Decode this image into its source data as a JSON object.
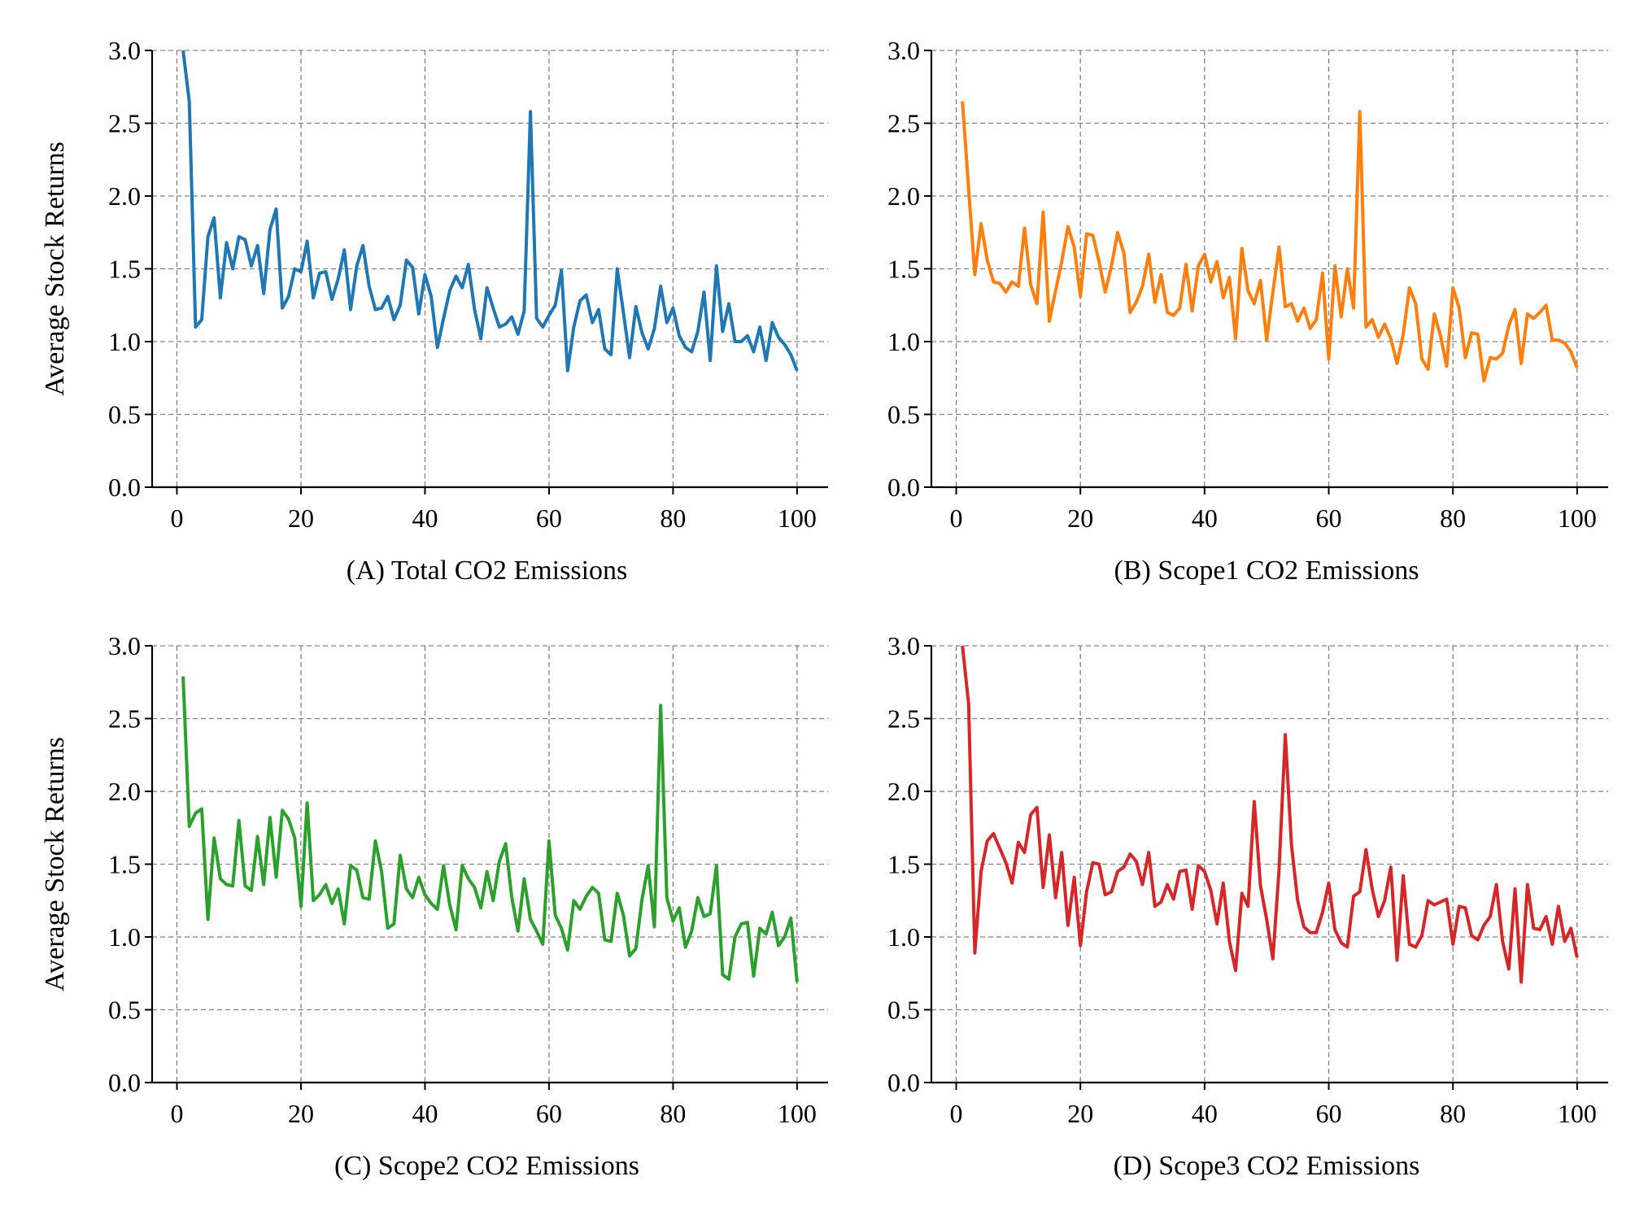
{
  "chart_data": [
    {
      "type": "line",
      "xlabel": "(A) Total CO2 Emissions",
      "ylabel": "Average Stock Returns",
      "xlim": [
        -4,
        105
      ],
      "ylim": [
        0,
        3.0
      ],
      "xticks": [
        0,
        20,
        40,
        60,
        80,
        100
      ],
      "yticks": [
        0.0,
        0.5,
        1.0,
        1.5,
        2.0,
        2.5,
        3.0
      ],
      "grid": true,
      "color": "#1f77b4",
      "series": [
        {
          "x": [
            1,
            2,
            3,
            4,
            5,
            6,
            7,
            8,
            9,
            10,
            11,
            12,
            13,
            14,
            15,
            16,
            17,
            18,
            19,
            20,
            21,
            22,
            23,
            24,
            25,
            26,
            27,
            28,
            29,
            30,
            31,
            32,
            33,
            34,
            35,
            36,
            37,
            38,
            39,
            40,
            41,
            42,
            43,
            44,
            45,
            46,
            47,
            48,
            49,
            50,
            51,
            52,
            53,
            54,
            55,
            56,
            57,
            58,
            59,
            60,
            61,
            62,
            63,
            64,
            65,
            66,
            67,
            68,
            69,
            70,
            71,
            72,
            73,
            74,
            75,
            76,
            77,
            78,
            79,
            80,
            81,
            82,
            83,
            84,
            85,
            86,
            87,
            88,
            89,
            90,
            91,
            92,
            93,
            94,
            95,
            96,
            97,
            98,
            99,
            100
          ],
          "values": [
            3.0,
            2.65,
            1.1,
            1.15,
            1.72,
            1.85,
            1.3,
            1.68,
            1.5,
            1.72,
            1.7,
            1.52,
            1.66,
            1.33,
            1.77,
            1.91,
            1.23,
            1.31,
            1.5,
            1.48,
            1.69,
            1.3,
            1.47,
            1.48,
            1.29,
            1.43,
            1.63,
            1.22,
            1.52,
            1.66,
            1.38,
            1.22,
            1.23,
            1.31,
            1.15,
            1.25,
            1.56,
            1.51,
            1.19,
            1.46,
            1.31,
            0.96,
            1.16,
            1.35,
            1.45,
            1.37,
            1.53,
            1.22,
            1.02,
            1.37,
            1.23,
            1.1,
            1.12,
            1.17,
            1.05,
            1.21,
            2.58,
            1.16,
            1.1,
            1.18,
            1.25,
            1.49,
            0.8,
            1.1,
            1.28,
            1.32,
            1.13,
            1.22,
            0.95,
            0.91,
            1.5,
            1.2,
            0.89,
            1.24,
            1.06,
            0.95,
            1.09,
            1.38,
            1.13,
            1.23,
            1.04,
            0.96,
            0.93,
            1.07,
            1.34,
            0.87,
            1.52,
            1.07,
            1.26,
            1.0,
            1.0,
            1.04,
            0.93,
            1.1,
            0.87,
            1.13,
            1.03,
            0.98,
            0.91,
            0.8
          ]
        }
      ]
    },
    {
      "type": "line",
      "xlabel": "(B) Scope1 CO2 Emissions",
      "ylabel": "",
      "xlim": [
        -4,
        105
      ],
      "ylim": [
        0,
        3.0
      ],
      "xticks": [
        0,
        20,
        40,
        60,
        80,
        100
      ],
      "yticks": [
        0.0,
        0.5,
        1.0,
        1.5,
        2.0,
        2.5,
        3.0
      ],
      "grid": true,
      "color": "#ff7f0e",
      "series": [
        {
          "x": [
            1,
            2,
            3,
            4,
            5,
            6,
            7,
            8,
            9,
            10,
            11,
            12,
            13,
            14,
            15,
            16,
            17,
            18,
            19,
            20,
            21,
            22,
            23,
            24,
            25,
            26,
            27,
            28,
            29,
            30,
            31,
            32,
            33,
            34,
            35,
            36,
            37,
            38,
            39,
            40,
            41,
            42,
            43,
            44,
            45,
            46,
            47,
            48,
            49,
            50,
            51,
            52,
            53,
            54,
            55,
            56,
            57,
            58,
            59,
            60,
            61,
            62,
            63,
            64,
            65,
            66,
            67,
            68,
            69,
            70,
            71,
            72,
            73,
            74,
            75,
            76,
            77,
            78,
            79,
            80,
            81,
            82,
            83,
            84,
            85,
            86,
            87,
            88,
            89,
            90,
            91,
            92,
            93,
            94,
            95,
            96,
            97,
            98,
            99,
            100
          ],
          "values": [
            2.65,
            2.05,
            1.46,
            1.81,
            1.56,
            1.41,
            1.4,
            1.34,
            1.41,
            1.38,
            1.78,
            1.39,
            1.26,
            1.89,
            1.14,
            1.35,
            1.55,
            1.79,
            1.65,
            1.31,
            1.74,
            1.73,
            1.55,
            1.34,
            1.52,
            1.75,
            1.61,
            1.2,
            1.27,
            1.38,
            1.6,
            1.27,
            1.46,
            1.2,
            1.18,
            1.23,
            1.53,
            1.21,
            1.52,
            1.6,
            1.41,
            1.55,
            1.3,
            1.44,
            1.02,
            1.64,
            1.35,
            1.26,
            1.42,
            1.01,
            1.34,
            1.65,
            1.24,
            1.26,
            1.14,
            1.23,
            1.09,
            1.15,
            1.47,
            0.88,
            1.52,
            1.17,
            1.5,
            1.23,
            2.58,
            1.1,
            1.15,
            1.03,
            1.12,
            1.02,
            0.85,
            1.05,
            1.37,
            1.26,
            0.88,
            0.81,
            1.19,
            1.04,
            0.83,
            1.37,
            1.23,
            0.89,
            1.06,
            1.05,
            0.73,
            0.89,
            0.88,
            0.92,
            1.11,
            1.22,
            0.85,
            1.19,
            1.16,
            1.2,
            1.25,
            1.01,
            1.01,
            0.99,
            0.93,
            0.82
          ]
        }
      ]
    },
    {
      "type": "line",
      "xlabel": "(C) Scope2 CO2 Emissions",
      "ylabel": "Average Stock Returns",
      "xlim": [
        -4,
        105
      ],
      "ylim": [
        0,
        3.0
      ],
      "xticks": [
        0,
        20,
        40,
        60,
        80,
        100
      ],
      "yticks": [
        0.0,
        0.5,
        1.0,
        1.5,
        2.0,
        2.5,
        3.0
      ],
      "grid": true,
      "color": "#2ca02c",
      "series": [
        {
          "x": [
            1,
            2,
            3,
            4,
            5,
            6,
            7,
            8,
            9,
            10,
            11,
            12,
            13,
            14,
            15,
            16,
            17,
            18,
            19,
            20,
            21,
            22,
            23,
            24,
            25,
            26,
            27,
            28,
            29,
            30,
            31,
            32,
            33,
            34,
            35,
            36,
            37,
            38,
            39,
            40,
            41,
            42,
            43,
            44,
            45,
            46,
            47,
            48,
            49,
            50,
            51,
            52,
            53,
            54,
            55,
            56,
            57,
            58,
            59,
            60,
            61,
            62,
            63,
            64,
            65,
            66,
            67,
            68,
            69,
            70,
            71,
            72,
            73,
            74,
            75,
            76,
            77,
            78,
            79,
            80,
            81,
            82,
            83,
            84,
            85,
            86,
            87,
            88,
            89,
            90,
            91,
            92,
            93,
            94,
            95,
            96,
            97,
            98,
            99,
            100
          ],
          "values": [
            2.79,
            1.76,
            1.85,
            1.88,
            1.12,
            1.68,
            1.4,
            1.36,
            1.35,
            1.8,
            1.35,
            1.32,
            1.69,
            1.36,
            1.82,
            1.41,
            1.87,
            1.81,
            1.68,
            1.21,
            1.92,
            1.25,
            1.29,
            1.36,
            1.23,
            1.33,
            1.09,
            1.49,
            1.46,
            1.27,
            1.26,
            1.66,
            1.45,
            1.06,
            1.09,
            1.56,
            1.33,
            1.27,
            1.41,
            1.29,
            1.23,
            1.19,
            1.49,
            1.22,
            1.05,
            1.49,
            1.4,
            1.34,
            1.2,
            1.45,
            1.25,
            1.52,
            1.64,
            1.27,
            1.04,
            1.4,
            1.12,
            1.04,
            0.95,
            1.66,
            1.15,
            1.06,
            0.91,
            1.25,
            1.19,
            1.28,
            1.34,
            1.3,
            0.98,
            0.97,
            1.3,
            1.15,
            0.87,
            0.92,
            1.26,
            1.49,
            1.07,
            2.59,
            1.27,
            1.11,
            1.2,
            0.93,
            1.04,
            1.27,
            1.14,
            1.16,
            1.49,
            0.74,
            0.71,
            1.0,
            1.09,
            1.1,
            0.73,
            1.06,
            1.02,
            1.17,
            0.94,
            1.0,
            1.13,
            0.69
          ]
        }
      ]
    },
    {
      "type": "line",
      "xlabel": "(D) Scope3 CO2 Emissions",
      "ylabel": "",
      "xlim": [
        -4,
        105
      ],
      "ylim": [
        0,
        3.0
      ],
      "xticks": [
        0,
        20,
        40,
        60,
        80,
        100
      ],
      "yticks": [
        0.0,
        0.5,
        1.0,
        1.5,
        2.0,
        2.5,
        3.0
      ],
      "grid": true,
      "color": "#d62728",
      "series": [
        {
          "x": [
            1,
            2,
            3,
            4,
            5,
            6,
            7,
            8,
            9,
            10,
            11,
            12,
            13,
            14,
            15,
            16,
            17,
            18,
            19,
            20,
            21,
            22,
            23,
            24,
            25,
            26,
            27,
            28,
            29,
            30,
            31,
            32,
            33,
            34,
            35,
            36,
            37,
            38,
            39,
            40,
            41,
            42,
            43,
            44,
            45,
            46,
            47,
            48,
            49,
            50,
            51,
            52,
            53,
            54,
            55,
            56,
            57,
            58,
            59,
            60,
            61,
            62,
            63,
            64,
            65,
            66,
            67,
            68,
            69,
            70,
            71,
            72,
            73,
            74,
            75,
            76,
            77,
            78,
            79,
            80,
            81,
            82,
            83,
            84,
            85,
            86,
            87,
            88,
            89,
            90,
            91,
            92,
            93,
            94,
            95,
            96,
            97,
            98,
            99,
            100
          ],
          "values": [
            3.0,
            2.6,
            0.89,
            1.45,
            1.66,
            1.71,
            1.61,
            1.51,
            1.37,
            1.65,
            1.58,
            1.84,
            1.89,
            1.34,
            1.7,
            1.27,
            1.58,
            1.08,
            1.41,
            0.94,
            1.31,
            1.51,
            1.5,
            1.29,
            1.31,
            1.45,
            1.48,
            1.57,
            1.52,
            1.36,
            1.58,
            1.21,
            1.24,
            1.36,
            1.26,
            1.45,
            1.46,
            1.19,
            1.49,
            1.45,
            1.32,
            1.09,
            1.37,
            0.97,
            0.77,
            1.3,
            1.21,
            1.93,
            1.35,
            1.12,
            0.85,
            1.46,
            2.39,
            1.63,
            1.25,
            1.07,
            1.03,
            1.03,
            1.17,
            1.37,
            1.05,
            0.96,
            0.93,
            1.28,
            1.31,
            1.6,
            1.33,
            1.14,
            1.25,
            1.48,
            0.84,
            1.42,
            0.95,
            0.93,
            1.01,
            1.25,
            1.22,
            1.24,
            1.26,
            0.95,
            1.21,
            1.2,
            1.01,
            0.98,
            1.08,
            1.14,
            1.36,
            0.97,
            0.78,
            1.33,
            0.69,
            1.36,
            1.06,
            1.05,
            1.14,
            0.95,
            1.21,
            0.97,
            1.06,
            0.86
          ]
        }
      ]
    }
  ]
}
